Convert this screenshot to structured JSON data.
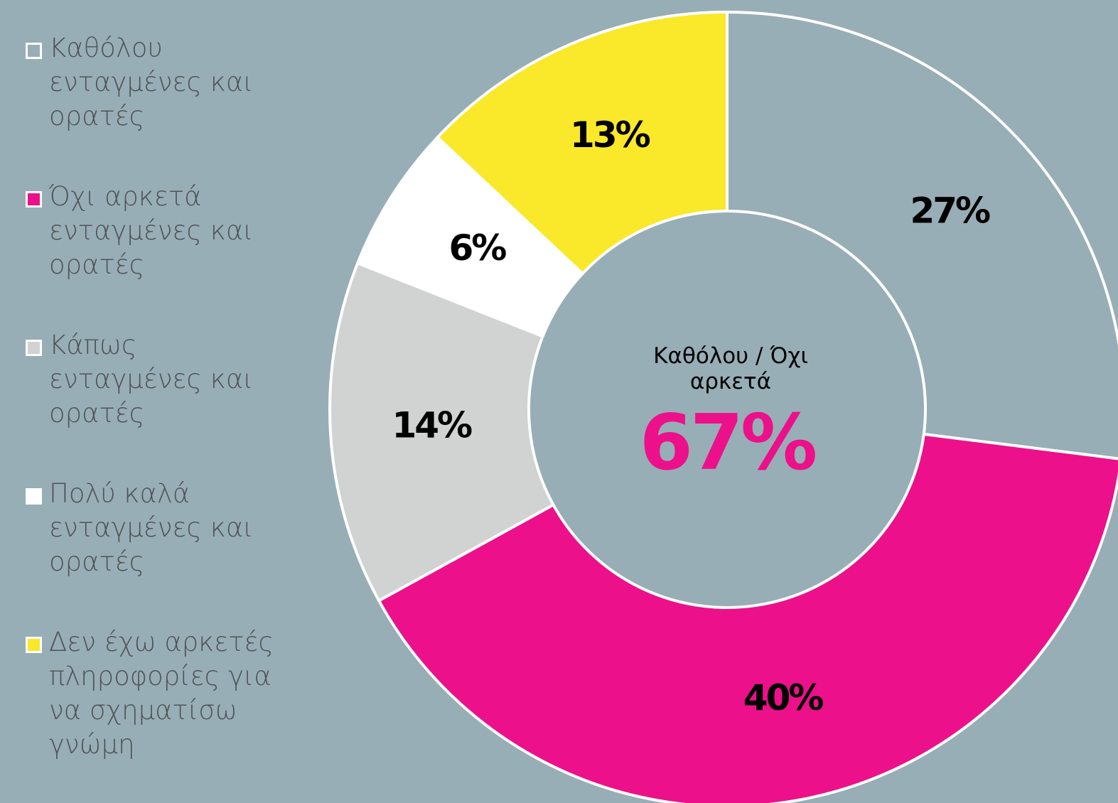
{
  "chart_data": {
    "type": "donut",
    "categories": [
      "Καθόλου ενταγμένες και ορατές",
      "Όχι αρκετά ενταγμένες και ορατές",
      "Κάπως ενταγμένες και ορατές",
      "Πολύ καλά ενταγμένες και ορατές",
      "Δεν έχω αρκετές πληροφορίες για να σχηματίσω γνώμη"
    ],
    "values": [
      27,
      40,
      14,
      6,
      13
    ],
    "value_labels": [
      "27%",
      "40%",
      "14%",
      "6%",
      "13%"
    ],
    "colors": [
      "#98aeb6",
      "#ec108a",
      "#d0d3d2",
      "#ffffff",
      "#fae82a"
    ],
    "center_label": "Καθόλου / Όχι αρκετά",
    "center_value": 67,
    "center_value_label": "67%",
    "legend": "left"
  }
}
